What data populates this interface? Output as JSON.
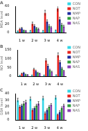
{
  "chart_data": [
    {
      "type": "bar",
      "title": "A",
      "y_label": "MDA level",
      "categories": [
        "1 w",
        "2 w",
        "3 w",
        "4 w"
      ],
      "series": [
        {
          "name": "CON",
          "color": "#33d6e6",
          "values": [
            3,
            4,
            4,
            5
          ],
          "errors": [
            1,
            1,
            1,
            1
          ]
        },
        {
          "name": "NOT",
          "color": "#e8221c",
          "values": [
            8,
            20,
            45,
            55
          ],
          "errors": [
            2,
            4,
            6,
            7
          ]
        },
        {
          "name": "NMP",
          "color": "#1c2b9e",
          "values": [
            10,
            15,
            25,
            30
          ],
          "errors": [
            2,
            3,
            4,
            5
          ]
        },
        {
          "name": "NAP",
          "color": "#2e9e3a",
          "values": [
            5,
            10,
            15,
            18
          ],
          "errors": [
            1,
            2,
            3,
            3
          ]
        },
        {
          "name": "NAS",
          "color": "#8a3fb5",
          "values": [
            4,
            8,
            12,
            14
          ],
          "errors": [
            1,
            2,
            2,
            3
          ]
        }
      ],
      "ylim": [
        0,
        60
      ],
      "yticks": [
        0,
        20,
        40,
        60
      ],
      "grid": false,
      "legend": "right"
    },
    {
      "type": "bar",
      "title": "B",
      "y_label": "NO level",
      "categories": [
        "1 w",
        "2 w",
        "3 w",
        "4 w"
      ],
      "series": [
        {
          "name": "CON",
          "color": "#33d6e6",
          "values": [
            5,
            6,
            6,
            7
          ],
          "errors": [
            1,
            1,
            1,
            1
          ]
        },
        {
          "name": "NOT",
          "color": "#e8221c",
          "values": [
            15,
            40,
            90,
            120
          ],
          "errors": [
            3,
            6,
            10,
            14
          ]
        },
        {
          "name": "NMP",
          "color": "#1c2b9e",
          "values": [
            20,
            30,
            60,
            80
          ],
          "errors": [
            3,
            5,
            8,
            10
          ]
        },
        {
          "name": "NAP",
          "color": "#2e9e3a",
          "values": [
            10,
            20,
            35,
            45
          ],
          "errors": [
            2,
            3,
            5,
            6
          ]
        },
        {
          "name": "NAS",
          "color": "#8a3fb5",
          "values": [
            8,
            15,
            25,
            30
          ],
          "errors": [
            2,
            3,
            4,
            4
          ]
        }
      ],
      "ylim": [
        0,
        150
      ],
      "yticks": [
        0,
        50,
        100,
        150
      ],
      "grid": false,
      "legend": "right"
    },
    {
      "type": "bar",
      "title": "C",
      "y_label": "GSH level",
      "categories": [
        "1 w",
        "2 w",
        "3 w",
        "4 w"
      ],
      "series": [
        {
          "name": "CON",
          "color": "#33d6e6",
          "values": [
            30,
            32,
            33,
            34
          ],
          "errors": [
            3,
            3,
            3,
            3
          ]
        },
        {
          "name": "NOT",
          "color": "#e8221c",
          "values": [
            20,
            15,
            10,
            8
          ],
          "errors": [
            2,
            2,
            2,
            1
          ]
        },
        {
          "name": "NMP",
          "color": "#1c2b9e",
          "values": [
            22,
            18,
            15,
            12
          ],
          "errors": [
            2,
            2,
            2,
            2
          ]
        },
        {
          "name": "NAP",
          "color": "#2e9e3a",
          "values": [
            25,
            22,
            20,
            18
          ],
          "errors": [
            3,
            2,
            2,
            2
          ]
        },
        {
          "name": "NAS",
          "color": "#8a3fb5",
          "values": [
            27,
            25,
            23,
            22
          ],
          "errors": [
            3,
            3,
            2,
            2
          ]
        }
      ],
      "ylim": [
        0,
        40
      ],
      "yticks": [
        0,
        10,
        20,
        30,
        40
      ],
      "grid": false,
      "legend": "right"
    }
  ]
}
